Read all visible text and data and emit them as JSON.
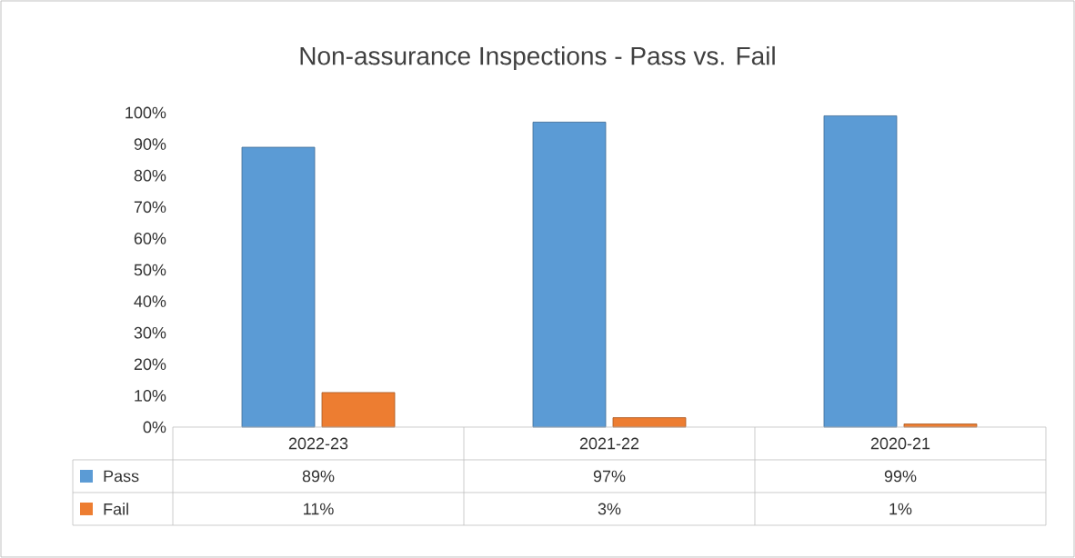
{
  "chart_data": {
    "type": "bar",
    "title": "Non-assurance Inspections - Pass vs. Fail",
    "categories": [
      "2022-23",
      "2021-22",
      "2020-21"
    ],
    "series": [
      {
        "name": "Pass",
        "color": "#5b9bd5",
        "values": [
          89,
          97,
          99
        ],
        "value_labels": [
          "89%",
          "97%",
          "99%"
        ]
      },
      {
        "name": "Fail",
        "color": "#ed7d31",
        "values": [
          11,
          3,
          1
        ],
        "value_labels": [
          "11%",
          "3%",
          "1%"
        ]
      }
    ],
    "ylim": [
      0,
      100
    ],
    "yticks": [
      {
        "value": 0,
        "label": "0%"
      },
      {
        "value": 10,
        "label": "10%"
      },
      {
        "value": 20,
        "label": "20%"
      },
      {
        "value": 30,
        "label": "30%"
      },
      {
        "value": 40,
        "label": "40%"
      },
      {
        "value": 50,
        "label": "50%"
      },
      {
        "value": 60,
        "label": "60%"
      },
      {
        "value": 70,
        "label": "70%"
      },
      {
        "value": 80,
        "label": "80%"
      },
      {
        "value": 90,
        "label": "90%"
      },
      {
        "value": 100,
        "label": "100%"
      }
    ],
    "legend": "bottom"
  }
}
